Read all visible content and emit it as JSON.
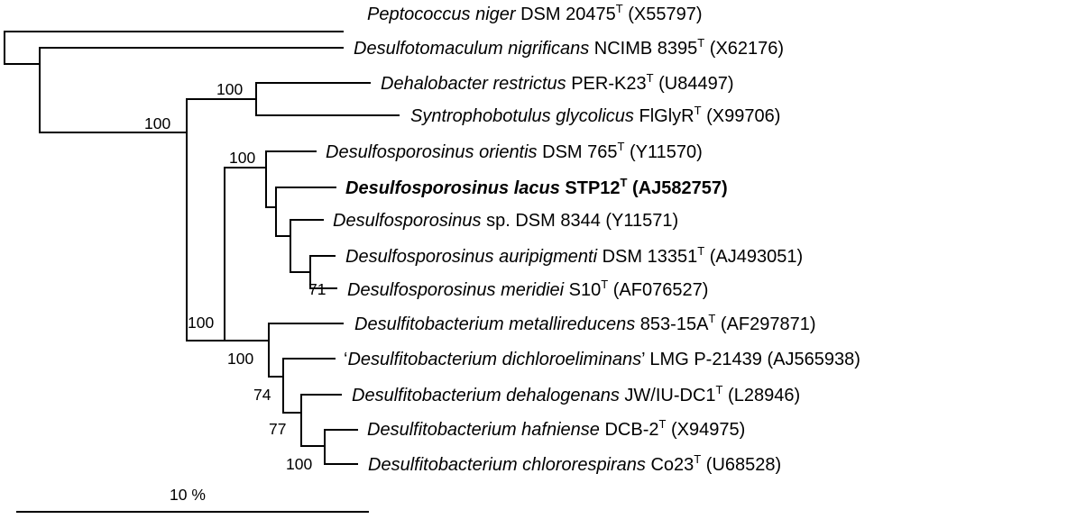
{
  "colors": {
    "line": "#000000",
    "text": "#000000",
    "background": "#ffffff"
  },
  "taxa": [
    {
      "species": "Peptococcus niger",
      "strain": "DSM 20475",
      "type": true,
      "accession": "(X55797)",
      "open_quote": "",
      "close_quote": "",
      "bold": false
    },
    {
      "species": "Desulfotomaculum nigrificans",
      "strain": "NCIMB 8395",
      "type": true,
      "accession": "(X62176)",
      "open_quote": "",
      "close_quote": "",
      "bold": false
    },
    {
      "species": "Dehalobacter restrictus",
      "strain": "PER-K23",
      "type": true,
      "accession": "(U84497)",
      "open_quote": "",
      "close_quote": "",
      "bold": false
    },
    {
      "species": "Syntrophobotulus glycolicus",
      "strain": "FlGlyR",
      "type": true,
      "accession": "(X99706)",
      "open_quote": "",
      "close_quote": "",
      "bold": false
    },
    {
      "species": "Desulfosporosinus orientis",
      "strain": "DSM 765",
      "type": true,
      "accession": "(Y11570)",
      "open_quote": "",
      "close_quote": "",
      "bold": false
    },
    {
      "species": "Desulfosporosinus lacus",
      "strain": "STP12",
      "type": true,
      "accession": "(AJ582757)",
      "open_quote": "",
      "close_quote": "",
      "bold": true
    },
    {
      "species": "Desulfosporosinus",
      "strain": "sp. DSM 8344",
      "type": false,
      "accession": "(Y11571)",
      "open_quote": "",
      "close_quote": "",
      "bold": false
    },
    {
      "species": "Desulfosporosinus auripigmenti",
      "strain": "DSM 13351",
      "type": true,
      "accession": "(AJ493051)",
      "open_quote": "",
      "close_quote": "",
      "bold": false
    },
    {
      "species": "Desulfosporosinus meridiei",
      "strain": "S10",
      "type": true,
      "accession": "(AF076527)",
      "open_quote": "",
      "close_quote": "",
      "bold": false
    },
    {
      "species": "Desulfitobacterium metallireducens",
      "strain": "853-15A",
      "type": true,
      "accession": "(AF297871)",
      "open_quote": "",
      "close_quote": "",
      "bold": false
    },
    {
      "species": "Desulfitobacterium dichloroeliminans",
      "strain": "LMG P-21439",
      "type": false,
      "accession": "(AJ565938)",
      "open_quote": "‘",
      "close_quote": "’",
      "bold": false
    },
    {
      "species": "Desulfitobacterium dehalogenans",
      "strain": "JW/IU-DC1",
      "type": true,
      "accession": "(L28946)",
      "open_quote": "",
      "close_quote": "",
      "bold": false
    },
    {
      "species": "Desulfitobacterium hafniense",
      "strain": "DCB-2",
      "type": true,
      "accession": "(X94975)",
      "open_quote": "",
      "close_quote": "",
      "bold": false
    },
    {
      "species": "Desulfitobacterium chlororespirans",
      "strain": "Co23",
      "type": true,
      "accession": "(U68528)",
      "open_quote": "",
      "close_quote": "",
      "bold": false
    }
  ],
  "type_marker": "T",
  "bootstrap": [
    "100",
    "100",
    "100",
    "71",
    "100",
    "100",
    "74",
    "77",
    "100"
  ],
  "scale_bar": {
    "label": "10 %"
  }
}
